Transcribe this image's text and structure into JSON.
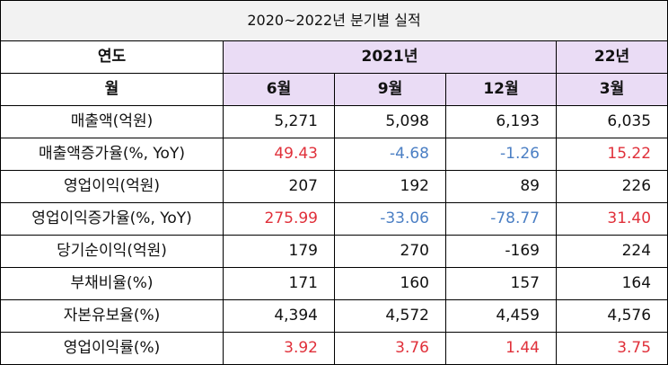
{
  "title": "2020~2022년 분기별 실적",
  "header": {
    "year_label": "연도",
    "year_2021": "2021년",
    "year_22": "22년",
    "month_label": "월",
    "months": [
      "6월",
      "9월",
      "12월",
      "3월"
    ]
  },
  "colors": {
    "positive": "#e0303a",
    "negative": "#4b7fc4",
    "header_bg": "#eadcf5",
    "title_bg": "#f2f2f2"
  },
  "rows": [
    {
      "label": "매출액(억원)",
      "values": [
        "5,271",
        "5,098",
        "6,193",
        "6,035"
      ],
      "tones": [
        "plain",
        "plain",
        "plain",
        "plain"
      ]
    },
    {
      "label": "매출액증가율(%, YoY)",
      "values": [
        "49.43",
        "-4.68",
        "-1.26",
        "15.22"
      ],
      "tones": [
        "pos",
        "neg",
        "neg",
        "pos"
      ]
    },
    {
      "label": "영업이익(억원)",
      "values": [
        "207",
        "192",
        "89",
        "226"
      ],
      "tones": [
        "plain",
        "plain",
        "plain",
        "plain"
      ]
    },
    {
      "label": "영업이익증가율(%, YoY)",
      "values": [
        "275.99",
        "-33.06",
        "-78.77",
        "31.40"
      ],
      "tones": [
        "pos",
        "neg",
        "neg",
        "pos"
      ]
    },
    {
      "label": "당기순이익(억원)",
      "values": [
        "179",
        "270",
        "-169",
        "224"
      ],
      "tones": [
        "plain",
        "plain",
        "plain",
        "plain"
      ]
    },
    {
      "label": "부채비율(%)",
      "values": [
        "171",
        "160",
        "157",
        "164"
      ],
      "tones": [
        "plain",
        "plain",
        "plain",
        "plain"
      ]
    },
    {
      "label": "자본유보율(%)",
      "values": [
        "4,394",
        "4,572",
        "4,459",
        "4,576"
      ],
      "tones": [
        "plain",
        "plain",
        "plain",
        "plain"
      ]
    },
    {
      "label": "영업이익률(%)",
      "values": [
        "3.92",
        "3.76",
        "1.44",
        "3.75"
      ],
      "tones": [
        "pos",
        "pos",
        "pos",
        "pos"
      ]
    }
  ]
}
